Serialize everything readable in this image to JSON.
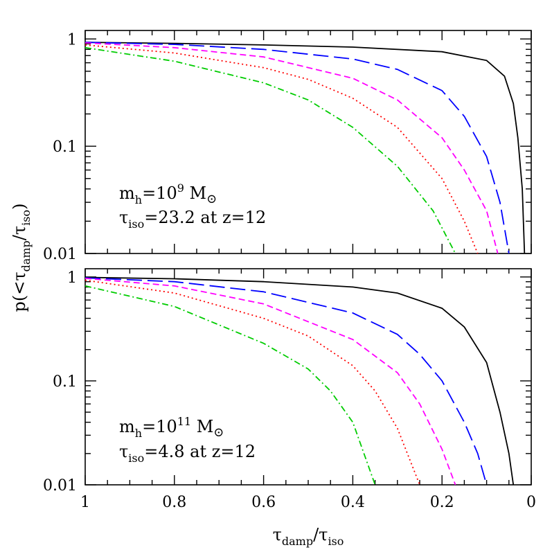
{
  "chart_data": [
    {
      "type": "line",
      "panel": "top",
      "yscale": "log",
      "xlim": [
        1,
        0
      ],
      "ylim": [
        0.01,
        1.2
      ],
      "xticks": [
        "1",
        "0.8",
        "0.6",
        "0.4",
        "0.2",
        "0"
      ],
      "yticks": [
        "1",
        "0.1",
        "0.01"
      ],
      "annotation": {
        "line1": {
          "a": "m",
          "b": "h",
          "c": "=10",
          "d": "9",
          "e": " M",
          "f": "⊙"
        },
        "line2": {
          "a": "τ",
          "b": "iso",
          "c": "=23.2 at z=12"
        }
      },
      "series": [
        {
          "color": "#000000",
          "dash": "solid",
          "points": [
            [
              1,
              0.93
            ],
            [
              0.8,
              0.91
            ],
            [
              0.6,
              0.88
            ],
            [
              0.4,
              0.84
            ],
            [
              0.2,
              0.76
            ],
            [
              0.1,
              0.63
            ],
            [
              0.06,
              0.45
            ],
            [
              0.04,
              0.25
            ],
            [
              0.03,
              0.12
            ],
            [
              0.02,
              0.04
            ],
            [
              0.015,
              0.01
            ]
          ]
        },
        {
          "color": "#0000ff",
          "dash": "long",
          "points": [
            [
              1,
              0.93
            ],
            [
              0.8,
              0.89
            ],
            [
              0.6,
              0.8
            ],
            [
              0.4,
              0.65
            ],
            [
              0.3,
              0.52
            ],
            [
              0.2,
              0.33
            ],
            [
              0.15,
              0.19
            ],
            [
              0.1,
              0.08
            ],
            [
              0.07,
              0.03
            ],
            [
              0.05,
              0.01
            ]
          ]
        },
        {
          "color": "#ff00ff",
          "dash": "short",
          "points": [
            [
              1,
              0.92
            ],
            [
              0.8,
              0.83
            ],
            [
              0.6,
              0.68
            ],
            [
              0.4,
              0.43
            ],
            [
              0.3,
              0.27
            ],
            [
              0.2,
              0.12
            ],
            [
              0.15,
              0.06
            ],
            [
              0.1,
              0.025
            ],
            [
              0.075,
              0.01
            ]
          ]
        },
        {
          "color": "#ff0000",
          "dash": "dotted",
          "points": [
            [
              1,
              0.88
            ],
            [
              0.8,
              0.74
            ],
            [
              0.6,
              0.54
            ],
            [
              0.5,
              0.42
            ],
            [
              0.4,
              0.28
            ],
            [
              0.3,
              0.15
            ],
            [
              0.2,
              0.05
            ],
            [
              0.15,
              0.02
            ],
            [
              0.12,
              0.01
            ]
          ]
        },
        {
          "color": "#00cc00",
          "dash": "dashdot",
          "points": [
            [
              1,
              0.83
            ],
            [
              0.8,
              0.62
            ],
            [
              0.6,
              0.39
            ],
            [
              0.5,
              0.27
            ],
            [
              0.4,
              0.15
            ],
            [
              0.3,
              0.065
            ],
            [
              0.22,
              0.025
            ],
            [
              0.17,
              0.01
            ]
          ]
        }
      ]
    },
    {
      "type": "line",
      "panel": "bottom",
      "yscale": "log",
      "xlim": [
        1,
        0
      ],
      "ylim": [
        0.01,
        1.2
      ],
      "xticks": [
        "1",
        "0.8",
        "0.6",
        "0.4",
        "0.2",
        "0"
      ],
      "yticks": [
        "1",
        "0.1",
        "0.01"
      ],
      "annotation": {
        "line1": {
          "a": "m",
          "b": "h",
          "c": "=10",
          "d": "11",
          "e": " M",
          "f": "⊙"
        },
        "line2": {
          "a": "τ",
          "b": "iso",
          "c": "=4.8 at z=12"
        }
      },
      "series": [
        {
          "color": "#000000",
          "dash": "solid",
          "points": [
            [
              1,
              0.99
            ],
            [
              0.8,
              0.96
            ],
            [
              0.6,
              0.9
            ],
            [
              0.4,
              0.8
            ],
            [
              0.3,
              0.7
            ],
            [
              0.2,
              0.5
            ],
            [
              0.15,
              0.33
            ],
            [
              0.1,
              0.15
            ],
            [
              0.07,
              0.05
            ],
            [
              0.05,
              0.02
            ],
            [
              0.04,
              0.01
            ]
          ]
        },
        {
          "color": "#0000ff",
          "dash": "long",
          "points": [
            [
              1,
              0.98
            ],
            [
              0.8,
              0.9
            ],
            [
              0.6,
              0.72
            ],
            [
              0.4,
              0.45
            ],
            [
              0.3,
              0.28
            ],
            [
              0.25,
              0.18
            ],
            [
              0.2,
              0.1
            ],
            [
              0.15,
              0.04
            ],
            [
              0.12,
              0.02
            ],
            [
              0.1,
              0.01
            ]
          ]
        },
        {
          "color": "#ff00ff",
          "dash": "short",
          "points": [
            [
              1,
              0.97
            ],
            [
              0.8,
              0.82
            ],
            [
              0.6,
              0.55
            ],
            [
              0.4,
              0.25
            ],
            [
              0.3,
              0.12
            ],
            [
              0.25,
              0.06
            ],
            [
              0.2,
              0.022
            ],
            [
              0.17,
              0.01
            ]
          ]
        },
        {
          "color": "#ff0000",
          "dash": "dotted",
          "points": [
            [
              1,
              0.93
            ],
            [
              0.8,
              0.7
            ],
            [
              0.6,
              0.4
            ],
            [
              0.5,
              0.27
            ],
            [
              0.4,
              0.14
            ],
            [
              0.35,
              0.08
            ],
            [
              0.3,
              0.035
            ],
            [
              0.25,
              0.01
            ]
          ]
        },
        {
          "color": "#00cc00",
          "dash": "dashdot",
          "points": [
            [
              1,
              0.82
            ],
            [
              0.8,
              0.52
            ],
            [
              0.6,
              0.23
            ],
            [
              0.5,
              0.13
            ],
            [
              0.45,
              0.08
            ],
            [
              0.4,
              0.04
            ],
            [
              0.35,
              0.01
            ]
          ]
        }
      ]
    }
  ],
  "ylabel": {
    "a": "p(<",
    "b": "τ",
    "c": "damp",
    "d": "/",
    "e": "τ",
    "f": "iso",
    "g": ")"
  },
  "xlabel": {
    "a": "τ",
    "b": "damp",
    "c": "/",
    "d": "τ",
    "e": "iso"
  }
}
